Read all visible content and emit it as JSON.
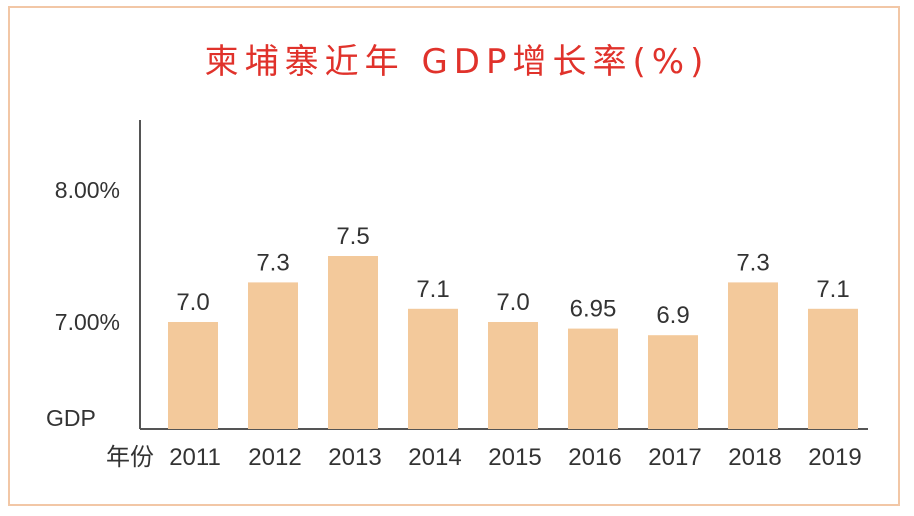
{
  "chart_data": {
    "type": "bar",
    "title": "柬埔寨近年 GDP增长率(%)",
    "xlabel": "年份",
    "ylabel": "GDP",
    "categories": [
      "2011",
      "2012",
      "2013",
      "2014",
      "2015",
      "2016",
      "2017",
      "2018",
      "2019"
    ],
    "values": [
      7.0,
      7.3,
      7.5,
      7.1,
      7.0,
      6.95,
      6.9,
      7.3,
      7.1
    ],
    "value_labels": [
      "7.0",
      "7.3",
      "7.5",
      "7.1",
      "7.0",
      "6.95",
      "6.9",
      "7.3",
      "7.1"
    ],
    "yticks": [
      {
        "value": 8.0,
        "label": "8.00%"
      },
      {
        "value": 7.0,
        "label": "7.00%"
      }
    ],
    "bar_color": "#f3c99b",
    "title_color": "#e0322b",
    "grid": false,
    "legend": "none"
  }
}
